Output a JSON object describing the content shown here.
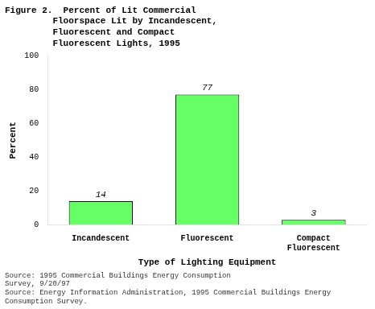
{
  "chart_data": {
    "type": "bar",
    "title": "Figure 2.  Percent of Lit Commercial\n         Floorspace Lit by Incandescent,\n         Fluorescent and Compact\n         Fluorescent Lights, 1995",
    "categories": [
      "Incandescent",
      "Fluorescent",
      "Compact\nFluorescent"
    ],
    "values": [
      14,
      77,
      3
    ],
    "color": "#66FF66",
    "xlabel": "Type of Lighting Equipment",
    "ylabel": "Percent",
    "ylim": [
      0,
      100
    ],
    "yticks": [
      0,
      20,
      40,
      60,
      80,
      100
    ],
    "grid": false,
    "data_labels": true,
    "annotations": [
      "Source: 1995 Commercial Buildings Energy Consumption\nSurvey, 9/20/97",
      "Source: Energy Information Administration, 1995 Commercial Buildings Energy Consumption Survey."
    ]
  }
}
